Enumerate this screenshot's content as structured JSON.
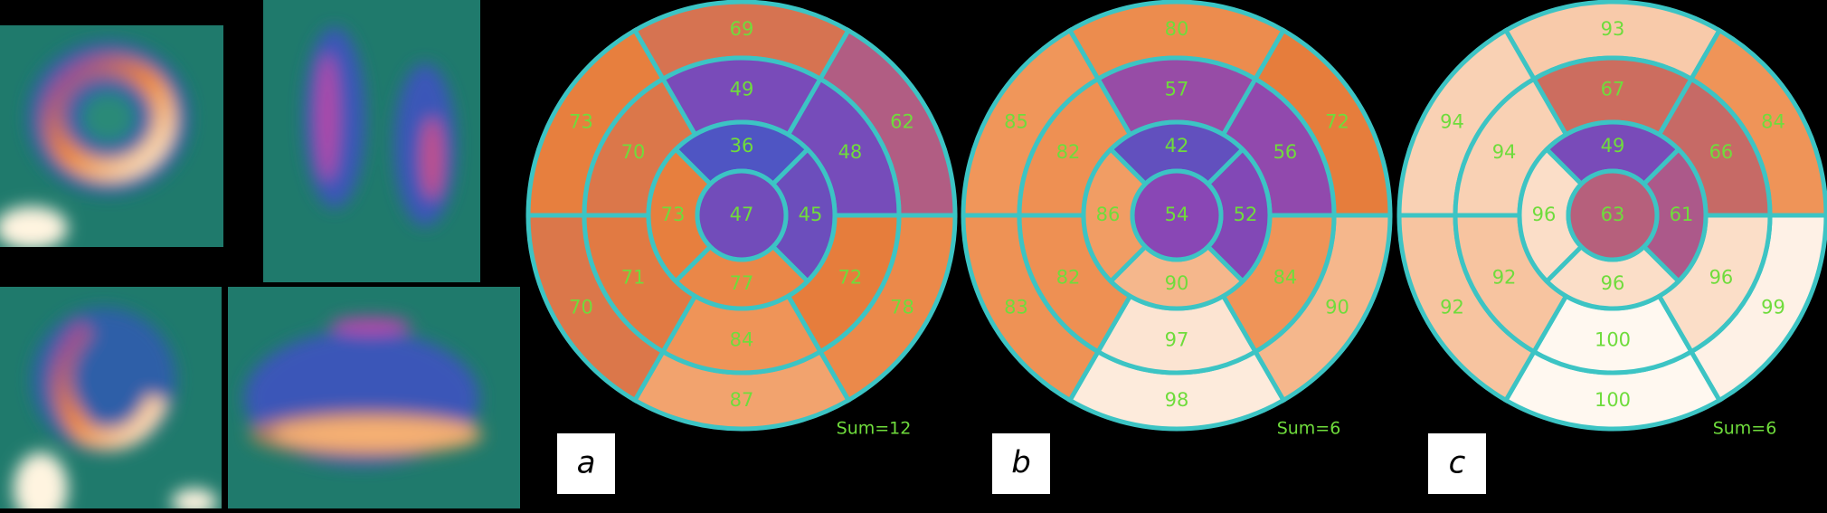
{
  "panels": [
    {
      "label": "a",
      "sum": "Sum=12",
      "apex": 47,
      "apical": [
        36,
        45,
        77,
        73
      ],
      "mid": [
        49,
        48,
        72,
        84,
        71,
        70
      ],
      "basal": [
        69,
        62,
        78,
        87,
        70,
        73
      ]
    },
    {
      "label": "b",
      "sum": "Sum=6",
      "apex": 54,
      "apical": [
        42,
        52,
        90,
        86
      ],
      "mid": [
        57,
        56,
        84,
        97,
        82,
        82
      ],
      "basal": [
        80,
        72,
        90,
        98,
        83,
        85
      ]
    },
    {
      "label": "c",
      "sum": "Sum=6",
      "apex": 63,
      "apical": [
        49,
        61,
        96,
        96
      ],
      "mid": [
        67,
        66,
        96,
        100,
        92,
        94
      ],
      "basal": [
        93,
        84,
        99,
        100,
        92,
        94
      ]
    }
  ]
}
